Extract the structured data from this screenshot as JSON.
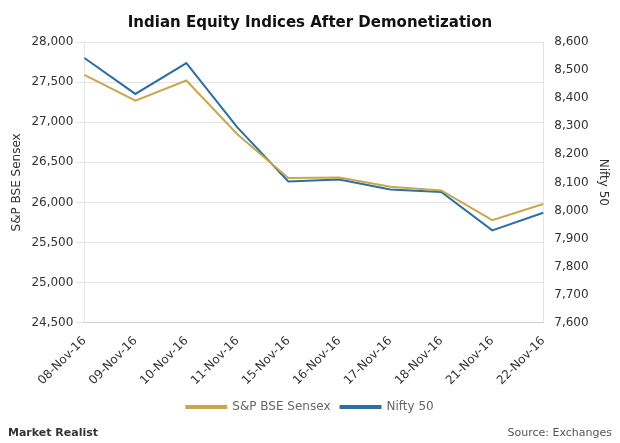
{
  "chart_data": {
    "type": "line",
    "title": "Indian Equity Indices After Demonetization",
    "categories": [
      "08-Nov-16",
      "09-Nov-16",
      "10-Nov-16",
      "11-Nov-16",
      "15-Nov-16",
      "16-Nov-16",
      "17-Nov-16",
      "18-Nov-16",
      "21-Nov-16",
      "22-Nov-16"
    ],
    "series": [
      {
        "name": "S&P BSE Sensex",
        "color": "#c8a84b",
        "values": [
          27590,
          27270,
          27520,
          26850,
          26305,
          26310,
          26195,
          26150,
          25780,
          25980
        ]
      },
      {
        "name": "Nifty 50",
        "color": "#2e6fa3",
        "axis": "y2",
        "values": [
          8543,
          8415,
          8525,
          8296,
          8103,
          8110,
          8075,
          8066,
          7929,
          7992
        ]
      }
    ],
    "ylabel": "S&P BSE Sensex",
    "y2label": "Nifty 50",
    "ylim": [
      24500,
      28000
    ],
    "yticks": [
      {
        "value": 24500,
        "label": "24,500"
      },
      {
        "value": 25000,
        "label": "25,000"
      },
      {
        "value": 25500,
        "label": "25,500"
      },
      {
        "value": 26000,
        "label": "26,000"
      },
      {
        "value": 26500,
        "label": "26,500"
      },
      {
        "value": 27000,
        "label": "27,000"
      },
      {
        "value": 27500,
        "label": "27,500"
      },
      {
        "value": 28000,
        "label": "28,000"
      }
    ],
    "y2lim": [
      7600,
      8600
    ],
    "y2ticks": [
      {
        "value": 7600,
        "label": "7,600"
      },
      {
        "value": 7700,
        "label": "7,700"
      },
      {
        "value": 7800,
        "label": "7,800"
      },
      {
        "value": 7900,
        "label": "7,900"
      },
      {
        "value": 8000,
        "label": "8,000"
      },
      {
        "value": 8100,
        "label": "8,100"
      },
      {
        "value": 8200,
        "label": "8,200"
      },
      {
        "value": 8300,
        "label": "8,300"
      },
      {
        "value": 8400,
        "label": "8,400"
      },
      {
        "value": 8500,
        "label": "8,500"
      },
      {
        "value": 8600,
        "label": "8,600"
      }
    ],
    "grid": true,
    "legend": "bottom",
    "annotations": [
      "Source: Exchanges",
      "Market Realist"
    ]
  }
}
